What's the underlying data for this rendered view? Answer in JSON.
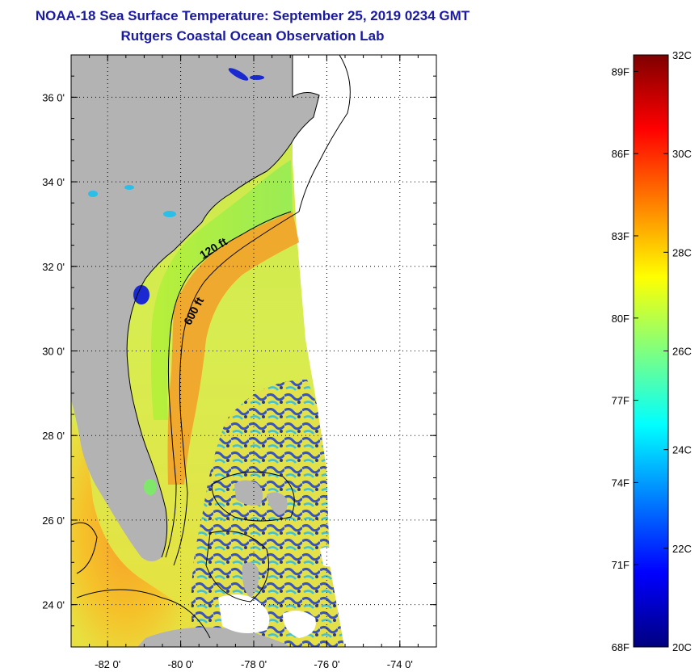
{
  "header": {
    "title": "NOAA-18 Sea Surface Temperature:  September 25, 2019 0234 GMT",
    "subtitle": "Rutgers Coastal Ocean Observation Lab"
  },
  "map": {
    "lon_range": [
      -83,
      -73
    ],
    "lat_range": [
      23,
      37
    ],
    "x_ticks": [
      {
        "value": -82,
        "label": "-82 0'"
      },
      {
        "value": -80,
        "label": "-80 0'"
      },
      {
        "value": -78,
        "label": "-78 0'"
      },
      {
        "value": -76,
        "label": "-76 0'"
      },
      {
        "value": -74,
        "label": "-74 0'"
      }
    ],
    "y_ticks": [
      {
        "value": 24,
        "label": "24 0'"
      },
      {
        "value": 26,
        "label": "26 0'"
      },
      {
        "value": 28,
        "label": "28 0'"
      },
      {
        "value": 30,
        "label": "30 0'"
      },
      {
        "value": 32,
        "label": "32 0'"
      },
      {
        "value": 34,
        "label": "34 0'"
      },
      {
        "value": 36,
        "label": "36 0'"
      }
    ],
    "contours": [
      {
        "label": "120 ft",
        "lon": -79.05,
        "lat": 32.35,
        "angle": -32
      },
      {
        "label": "600 ft",
        "lon": -79.55,
        "lat": 30.9,
        "angle": -62
      }
    ],
    "colors": {
      "land": "#b3b3b3",
      "no_data": "#ffffff",
      "grid": "#000000"
    }
  },
  "colorbar": {
    "celsius_range": [
      20,
      32
    ],
    "celsius_ticks": [
      {
        "value": 20,
        "label": "20C"
      },
      {
        "value": 22,
        "label": "22C"
      },
      {
        "value": 24,
        "label": "24C"
      },
      {
        "value": 26,
        "label": "26C"
      },
      {
        "value": 28,
        "label": "28C"
      },
      {
        "value": 30,
        "label": "30C"
      },
      {
        "value": 32,
        "label": "32C"
      }
    ],
    "fahrenheit_ticks": [
      {
        "value": 68,
        "label": "68F"
      },
      {
        "value": 71,
        "label": "71F"
      },
      {
        "value": 74,
        "label": "74F"
      },
      {
        "value": 77,
        "label": "77F"
      },
      {
        "value": 80,
        "label": "80F"
      },
      {
        "value": 83,
        "label": "83F"
      },
      {
        "value": 86,
        "label": "86F"
      },
      {
        "value": 89,
        "label": "89F"
      }
    ],
    "colormap": [
      "#00007f",
      "#0000ff",
      "#007fff",
      "#00ffff",
      "#7fff7f",
      "#ffff00",
      "#ff7f00",
      "#ff0000",
      "#7f0000"
    ]
  }
}
